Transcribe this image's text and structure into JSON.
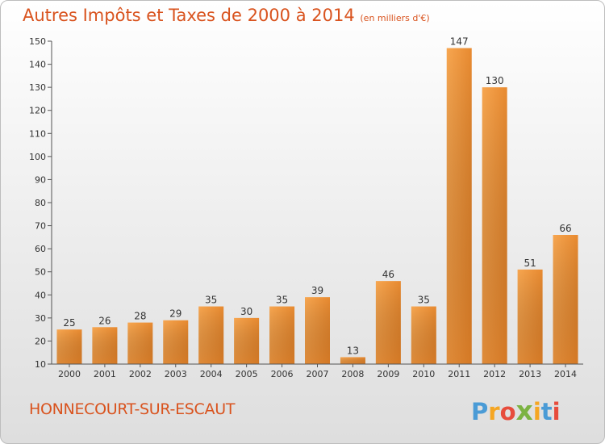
{
  "chart_data": {
    "type": "bar",
    "title": "Autres Impôts et Taxes de 2000 à 2014",
    "subtitle": "(en milliers d'€)",
    "categories": [
      "2000",
      "2001",
      "2002",
      "2003",
      "2004",
      "2005",
      "2006",
      "2007",
      "2008",
      "2009",
      "2010",
      "2011",
      "2012",
      "2013",
      "2014"
    ],
    "values": [
      25,
      26,
      28,
      29,
      35,
      30,
      35,
      39,
      13,
      46,
      35,
      147,
      130,
      51,
      66
    ],
    "ylim": [
      10,
      150
    ],
    "yticks": [
      10,
      20,
      30,
      40,
      50,
      60,
      70,
      80,
      90,
      100,
      110,
      120,
      130,
      140,
      150
    ],
    "grid": false,
    "bar_color": "#f0923a"
  },
  "commune": "HONNECOURT-SUR-ESCAUT",
  "logo": {
    "letters": [
      "P",
      "r",
      "o",
      "x",
      "i",
      "t",
      "i"
    ],
    "colors": [
      "#4a9bd6",
      "#f5a623",
      "#e74c3c",
      "#7cb342",
      "#f5a623",
      "#4a9bd6",
      "#e74c3c"
    ]
  }
}
